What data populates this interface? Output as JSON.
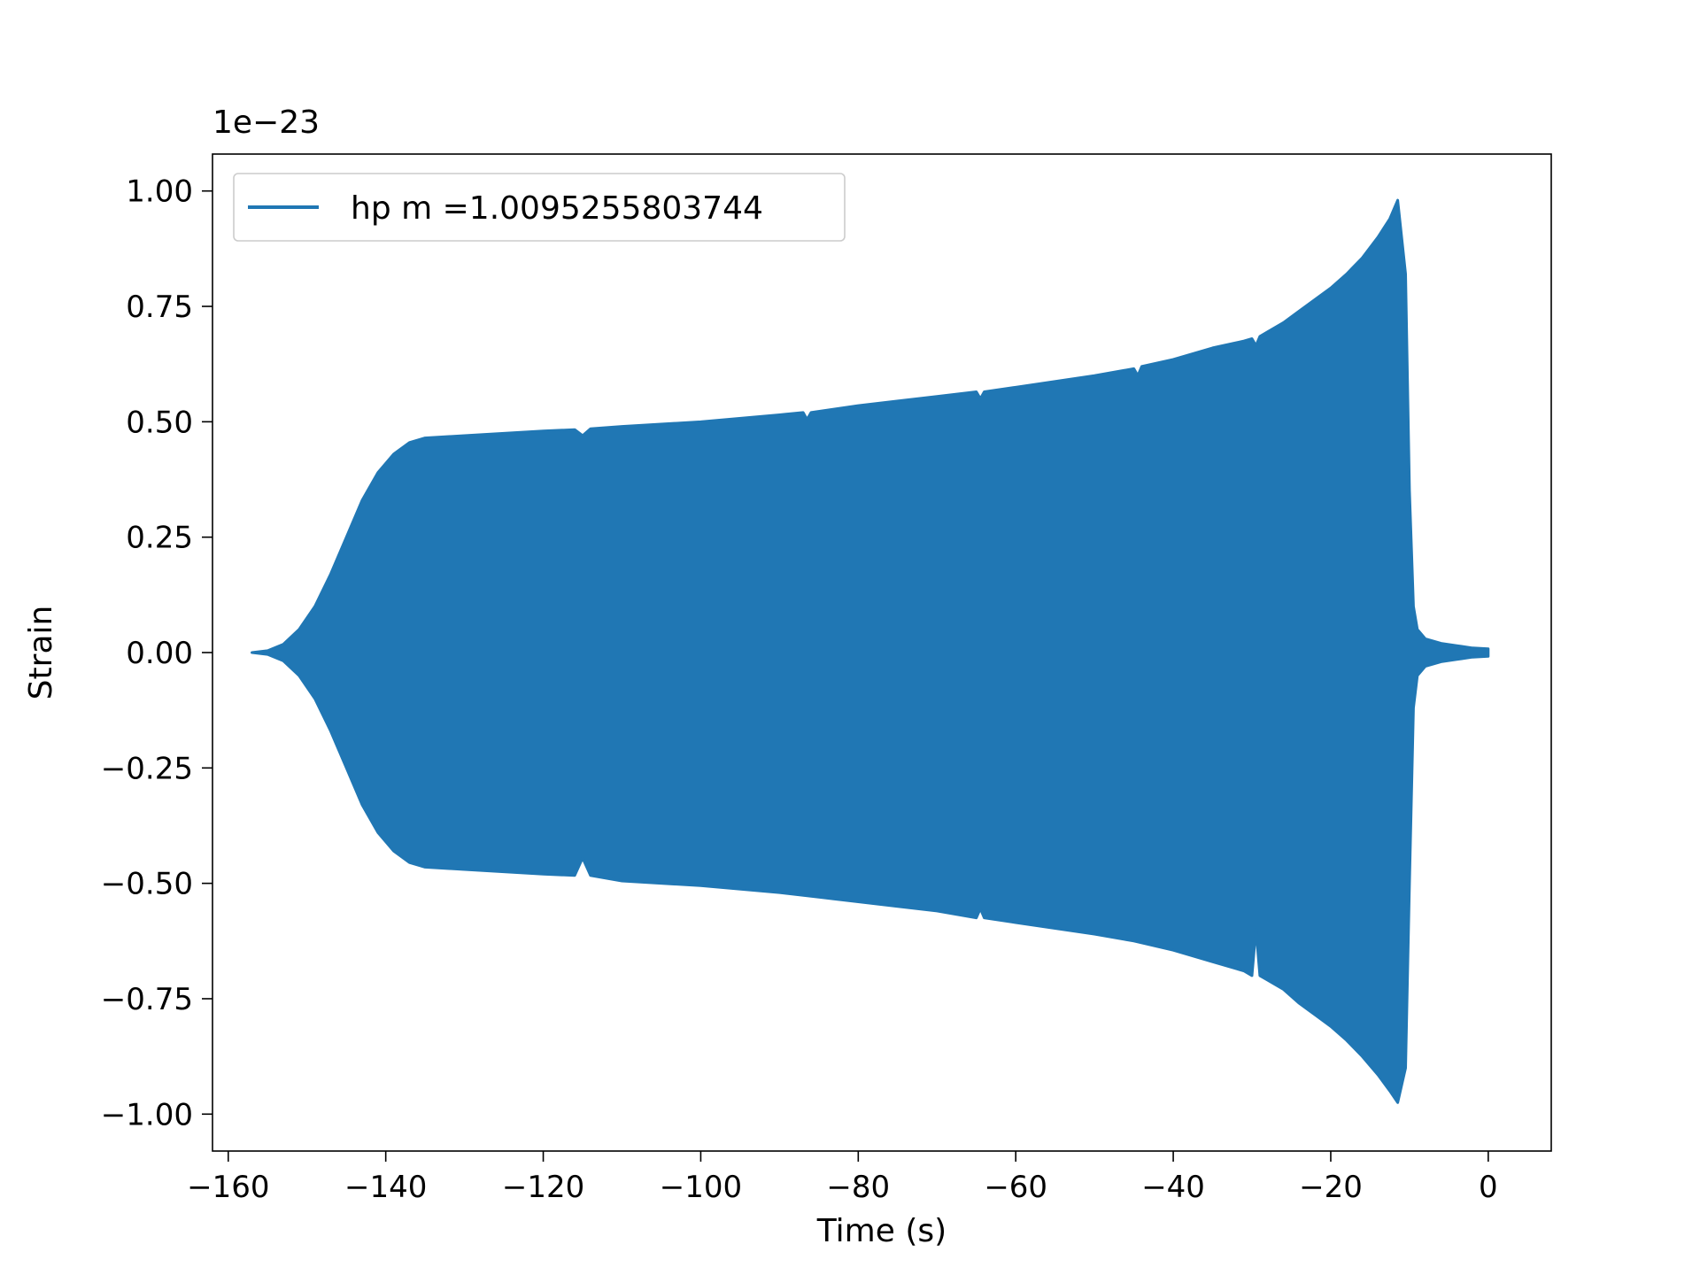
{
  "chart_data": {
    "type": "line",
    "title": "",
    "xlabel": "Time (s)",
    "ylabel": "Strain",
    "y_offset_label": "1e−23",
    "xlim": [
      -162,
      8
    ],
    "ylim": [
      -1.08,
      1.08
    ],
    "x_ticks": [
      -160,
      -140,
      -120,
      -100,
      -80,
      -60,
      -40,
      -20,
      0
    ],
    "x_tick_labels": [
      "−160",
      "−140",
      "−120",
      "−100",
      "−80",
      "−60",
      "−40",
      "−20",
      "0"
    ],
    "y_ticks": [
      -1.0,
      -0.75,
      -0.5,
      -0.25,
      0.0,
      0.25,
      0.5,
      0.75,
      1.0
    ],
    "y_tick_labels": [
      "−1.00",
      "−0.75",
      "−0.50",
      "−0.25",
      "0.00",
      "0.25",
      "0.50",
      "0.75",
      "1.00"
    ],
    "grid": false,
    "legend_position": "top-left",
    "color": "#2077b4",
    "series": [
      {
        "name": "hp m =1.0095255803744",
        "upper_envelope": {
          "x": [
            -157,
            -155,
            -153,
            -151,
            -149,
            -147,
            -145,
            -143,
            -141,
            -139,
            -137,
            -135,
            -130,
            -120,
            -116,
            -115,
            -114,
            -110,
            -100,
            -90,
            -87,
            -86.5,
            -86,
            -80,
            -70,
            -65,
            -64.5,
            -64,
            -60,
            -50,
            -45,
            -44.5,
            -44,
            -40,
            -35,
            -31,
            -30,
            -29.5,
            -29,
            -28,
            -26,
            -24,
            -22,
            -20,
            -18,
            -16,
            -14,
            -12.5,
            -11.5,
            -10.5,
            -10,
            -9.5,
            -9,
            -8,
            -6,
            -4,
            -2,
            0
          ],
          "y": [
            0.0,
            0.004,
            0.018,
            0.05,
            0.1,
            0.17,
            0.25,
            0.33,
            0.39,
            0.43,
            0.455,
            0.465,
            0.47,
            0.48,
            0.483,
            0.47,
            0.485,
            0.49,
            0.5,
            0.515,
            0.52,
            0.505,
            0.52,
            0.535,
            0.555,
            0.565,
            0.55,
            0.565,
            0.575,
            0.6,
            0.615,
            0.6,
            0.62,
            0.635,
            0.66,
            0.675,
            0.68,
            0.665,
            0.685,
            0.695,
            0.715,
            0.74,
            0.765,
            0.79,
            0.82,
            0.855,
            0.9,
            0.94,
            0.98,
            0.82,
            0.35,
            0.1,
            0.05,
            0.03,
            0.02,
            0.015,
            0.01,
            0.008
          ]
        },
        "lower_envelope": {
          "x": [
            -157,
            -155,
            -153,
            -151,
            -149,
            -147,
            -145,
            -143,
            -141,
            -139,
            -137,
            -135,
            -130,
            -120,
            -116,
            -115,
            -114,
            -110,
            -100,
            -90,
            -85,
            -80,
            -70,
            -65,
            -64.5,
            -64,
            -60,
            -50,
            -45,
            -40,
            -35,
            -31,
            -30,
            -29.5,
            -29,
            -28,
            -26,
            -24,
            -22,
            -20,
            -18,
            -16,
            -14,
            -12.5,
            -11.5,
            -10.5,
            -10,
            -9.5,
            -9,
            -8,
            -6,
            -4,
            -2,
            0
          ],
          "y": [
            0.0,
            -0.004,
            -0.018,
            -0.05,
            -0.1,
            -0.17,
            -0.25,
            -0.33,
            -0.39,
            -0.43,
            -0.455,
            -0.465,
            -0.47,
            -0.48,
            -0.483,
            -0.445,
            -0.483,
            -0.495,
            -0.505,
            -0.52,
            -0.53,
            -0.54,
            -0.56,
            -0.575,
            -0.555,
            -0.575,
            -0.585,
            -0.61,
            -0.625,
            -0.645,
            -0.67,
            -0.69,
            -0.7,
            -0.6,
            -0.7,
            -0.71,
            -0.73,
            -0.76,
            -0.785,
            -0.81,
            -0.84,
            -0.875,
            -0.915,
            -0.95,
            -0.975,
            -0.9,
            -0.5,
            -0.12,
            -0.05,
            -0.03,
            -0.02,
            -0.015,
            -0.01,
            -0.008
          ]
        }
      }
    ]
  }
}
